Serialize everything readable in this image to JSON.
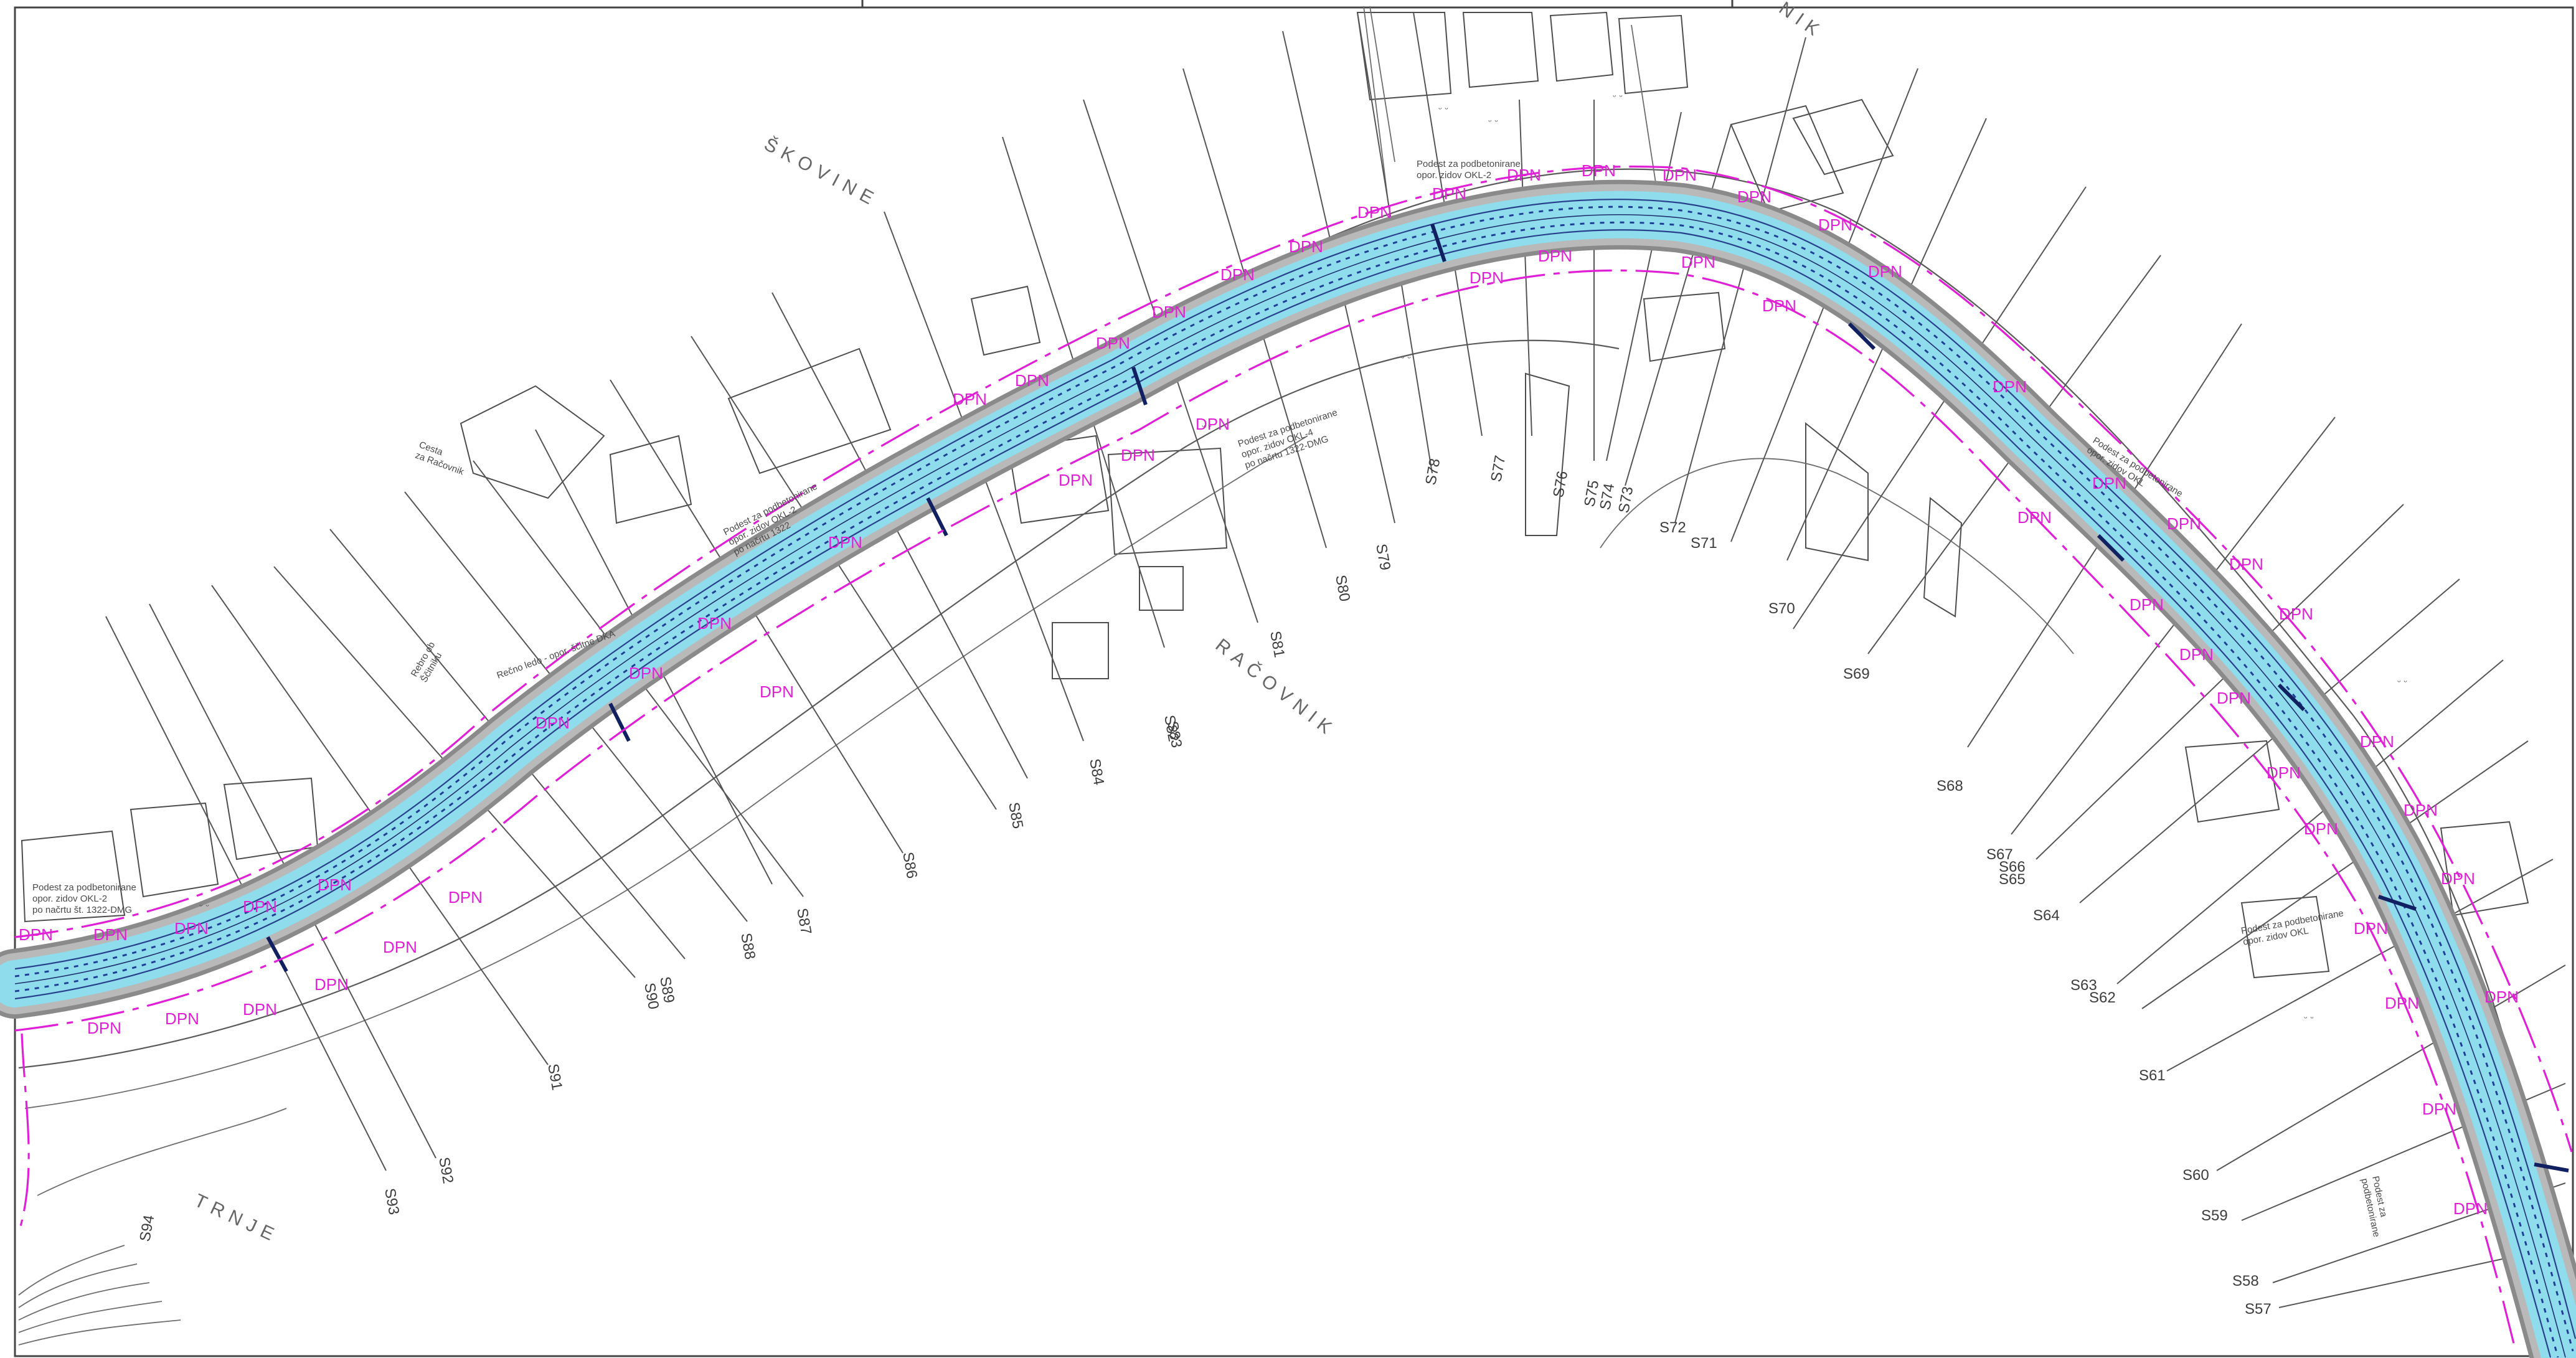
{
  "place_names": [
    {
      "id": "skovine",
      "text": "ŠKOVINE"
    },
    {
      "id": "racovnik",
      "text": "RAČOVNIK"
    },
    {
      "id": "trnje",
      "text": "TRNJE"
    },
    {
      "id": "vnik",
      "text": "NIK"
    }
  ],
  "notes": [
    {
      "id": "note-1",
      "lines": [
        "Podest za podbetonirane",
        "opor. zidov OKL-2",
        "po načrtu št. 1322-DMG"
      ]
    },
    {
      "id": "note-2",
      "lines": [
        "Podest za podbetonirane",
        "opor. zidov OKL-2"
      ]
    },
    {
      "id": "note-3",
      "lines": [
        "Podest za podbetonirane",
        "opor. zidov OKL-2",
        "po načrtu 1322"
      ]
    },
    {
      "id": "note-4",
      "lines": [
        "Podest za podbetonirane",
        "opor. zidov OKL-4",
        "po načrtu 1322-DMG"
      ]
    },
    {
      "id": "note-5",
      "lines": [
        "Podest za podbetonirane",
        "opor. zidov OKL"
      ]
    },
    {
      "id": "note-6",
      "lines": [
        "Cesta",
        "za Račovnik"
      ]
    },
    {
      "id": "note-7",
      "lines": [
        "Rebro ob",
        "Ščitniku"
      ]
    },
    {
      "id": "note-8",
      "lines": [
        "Rečno ledo - opor. ščitne DKA"
      ]
    },
    {
      "id": "note-9",
      "lines": [
        "Podest za podbetonirane",
        "opor. zidov OKL"
      ]
    },
    {
      "id": "note-10",
      "lines": [
        "Podest za",
        "podbetonirane"
      ]
    }
  ],
  "dpn_text": "DPN",
  "sections": [
    "S57",
    "S58",
    "S59",
    "S60",
    "S61",
    "S62",
    "S63",
    "S64",
    "S65",
    "S66",
    "S67",
    "S68",
    "S69",
    "S70",
    "S71",
    "S72",
    "S73",
    "S74",
    "S75",
    "S76",
    "S77",
    "S78",
    "S79",
    "S80",
    "S81",
    "S82",
    "S83",
    "S84",
    "S85",
    "S86",
    "S87",
    "S88",
    "S89",
    "S90",
    "S91",
    "S92",
    "S93",
    "S94"
  ],
  "colors": {
    "water": "#8fdcec",
    "bed": "#1f3e95",
    "dpn": "#e020d6",
    "linework": "#555555"
  }
}
